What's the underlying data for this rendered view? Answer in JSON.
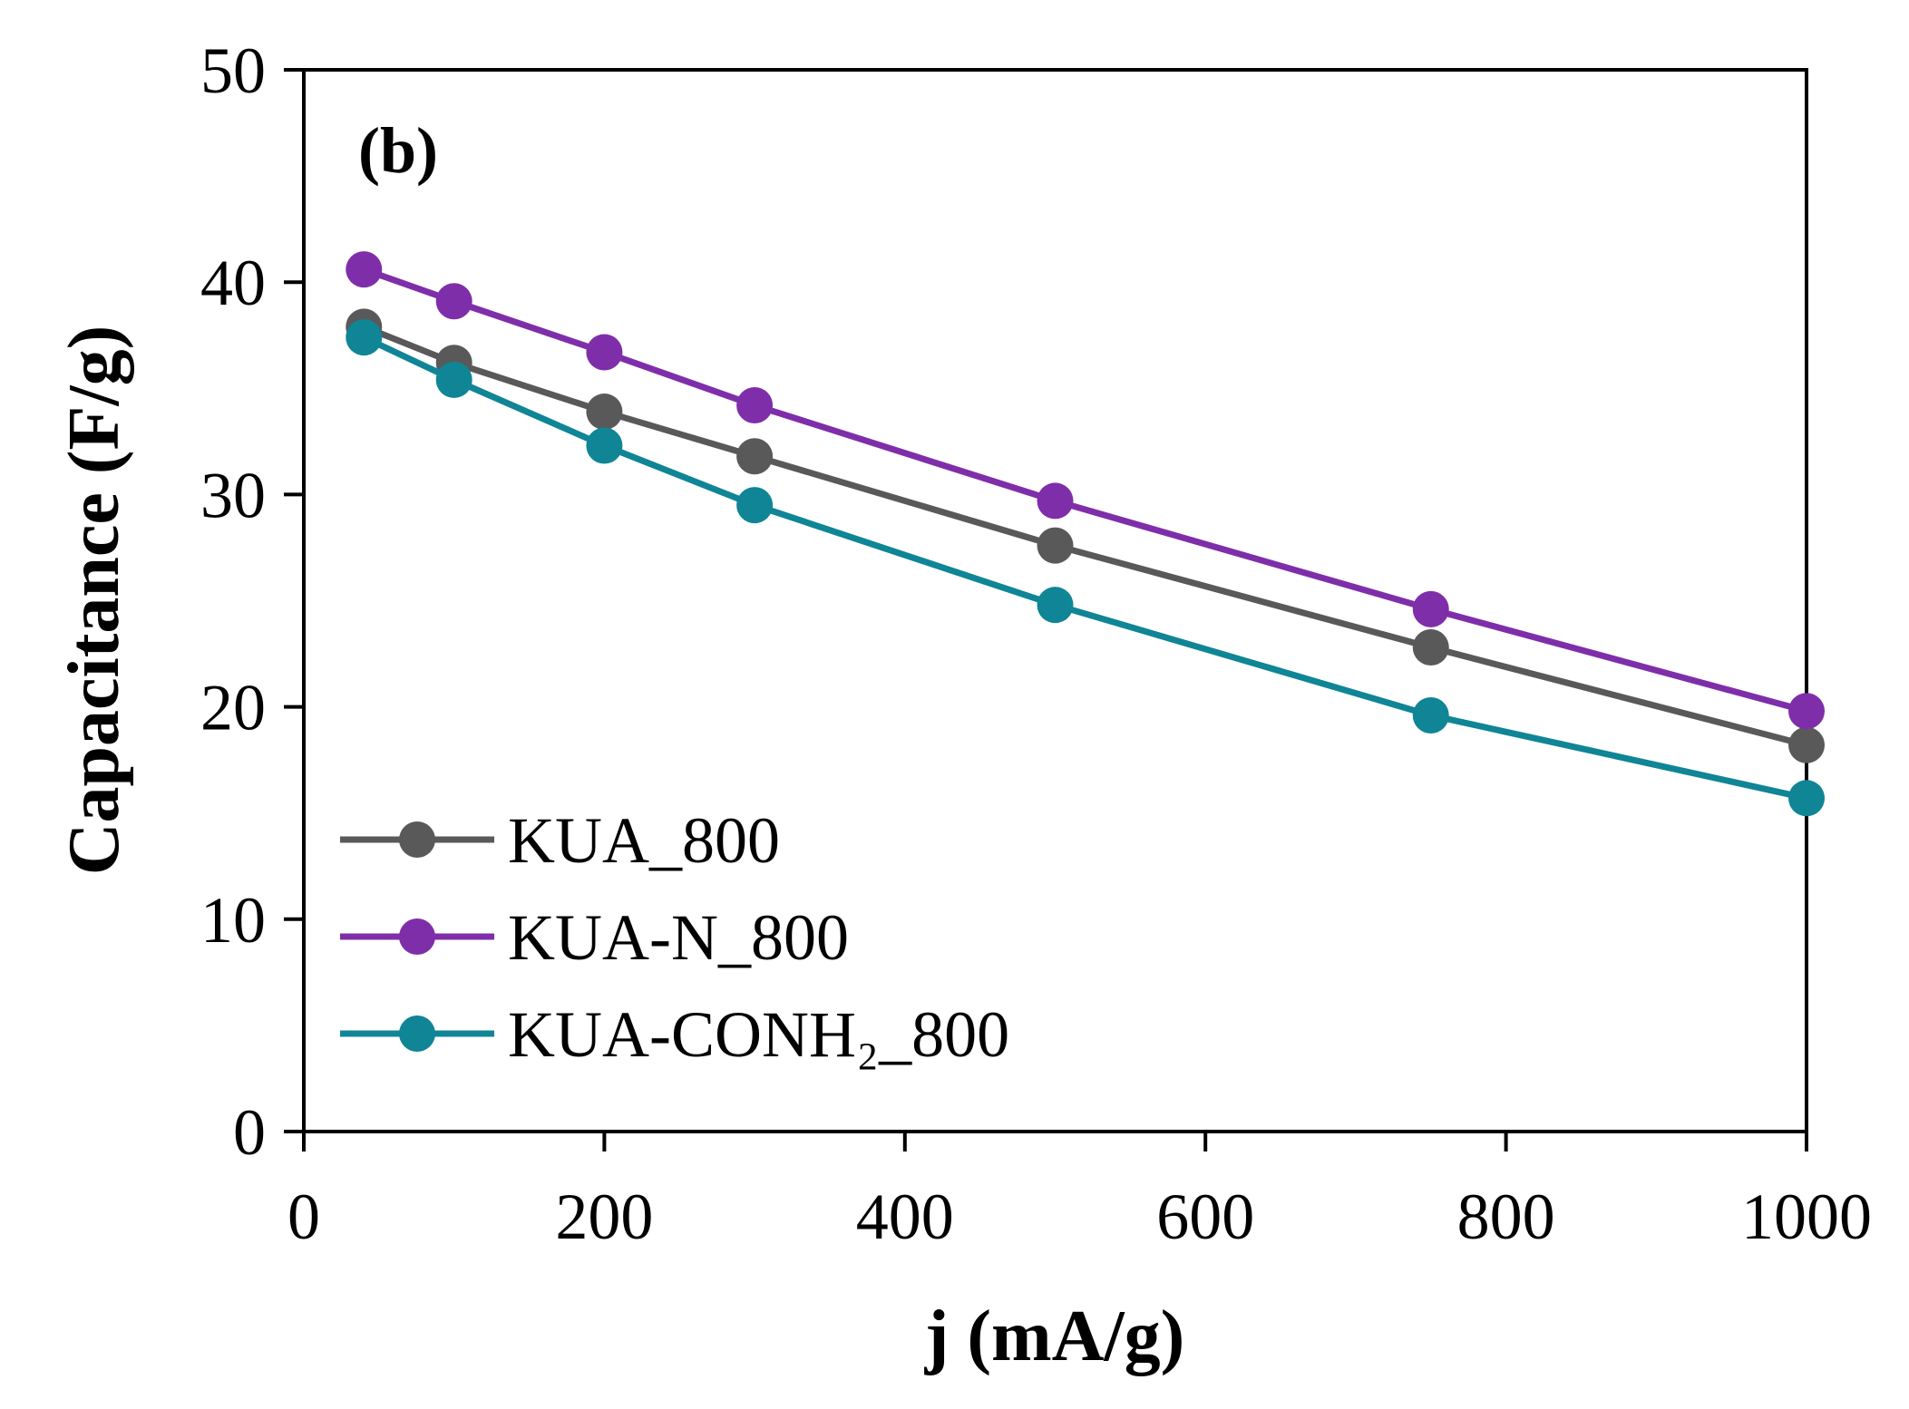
{
  "chart_data": {
    "type": "line",
    "panel_label": "(b)",
    "xlabel": "j (mA/g)",
    "ylabel": "Capacitance (F/g)",
    "xlim": [
      0,
      1000
    ],
    "ylim": [
      0,
      50
    ],
    "xticks": [
      0,
      200,
      400,
      600,
      800,
      1000
    ],
    "yticks": [
      0,
      10,
      20,
      30,
      40,
      50
    ],
    "grid": false,
    "legend_position": "bottom-left",
    "x": [
      40,
      100,
      200,
      300,
      500,
      750,
      1000
    ],
    "series": [
      {
        "name": "KUA_800",
        "color": "#595959",
        "values": [
          37.9,
          36.2,
          33.9,
          31.8,
          27.6,
          22.8,
          18.2
        ]
      },
      {
        "name": "KUA-N_800",
        "color": "#7F2EAA",
        "values": [
          40.6,
          39.1,
          36.7,
          34.2,
          29.7,
          24.6,
          19.8
        ]
      },
      {
        "name": "KUA-CONH₂_800",
        "color": "#0F8596",
        "values": [
          37.4,
          35.4,
          32.3,
          29.5,
          24.8,
          19.6,
          15.7
        ]
      }
    ]
  }
}
